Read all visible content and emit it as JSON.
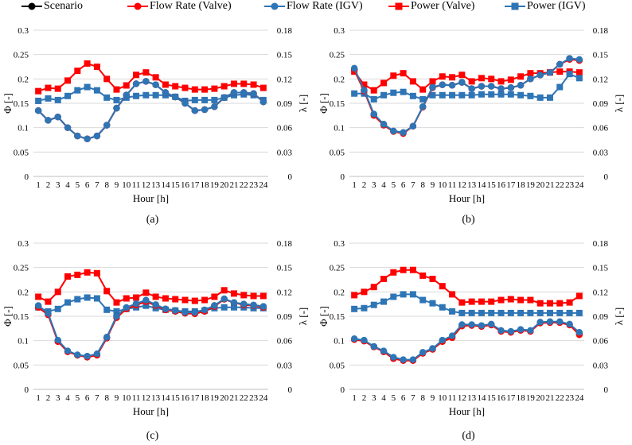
{
  "legend": {
    "items": [
      {
        "label": "Scenario",
        "marker": "circle",
        "color": "#000000"
      },
      {
        "label": "Flow Rate (Valve)",
        "marker": "circle",
        "color": "#ff0000"
      },
      {
        "label": "Flow Rate (IGV)",
        "marker": "circle",
        "color": "#2e75b6"
      },
      {
        "label": "Power (Valve)",
        "marker": "square",
        "color": "#ff0000"
      },
      {
        "label": "Power (IGV)",
        "marker": "square",
        "color": "#2e75b6"
      }
    ]
  },
  "chart_data": [
    {
      "type": "line",
      "caption": "(a)",
      "xlabel": "Hour [h]",
      "ylabel_left": "Φ [-]",
      "ylabel_right": "λ [-]",
      "yticks_left": [
        "0",
        "0.05",
        "0.1",
        "0.15",
        "0.2",
        "0.25",
        "0.3"
      ],
      "yticks_right": [
        "0",
        "0.03",
        "0.06",
        "0.09",
        "0.12",
        "0.15",
        "0.18"
      ],
      "ylim_left": [
        0,
        0.3
      ],
      "ylim_right": [
        0,
        0.18
      ],
      "x": [
        1,
        2,
        3,
        4,
        5,
        6,
        7,
        8,
        9,
        10,
        11,
        12,
        13,
        14,
        15,
        16,
        17,
        18,
        19,
        20,
        21,
        22,
        23,
        24
      ],
      "series": [
        {
          "name": "Scenario",
          "axis": "left",
          "values": [
            0.135,
            0.115,
            0.122,
            0.1,
            0.083,
            0.077,
            0.083,
            0.105,
            0.14,
            0.167,
            0.19,
            0.195,
            0.188,
            0.172,
            0.163,
            0.15,
            0.135,
            0.137,
            0.143,
            0.162,
            0.172,
            0.172,
            0.17,
            0.153
          ]
        },
        {
          "name": "Flow Rate (Valve)",
          "axis": "left",
          "values": [
            0.135,
            0.115,
            0.122,
            0.1,
            0.083,
            0.077,
            0.083,
            0.105,
            0.14,
            0.167,
            0.19,
            0.195,
            0.188,
            0.172,
            0.163,
            0.15,
            0.135,
            0.137,
            0.143,
            0.162,
            0.172,
            0.172,
            0.17,
            0.153
          ]
        },
        {
          "name": "Flow Rate (IGV)",
          "axis": "left",
          "values": [
            0.135,
            0.115,
            0.122,
            0.1,
            0.083,
            0.077,
            0.083,
            0.105,
            0.14,
            0.167,
            0.19,
            0.195,
            0.188,
            0.172,
            0.163,
            0.15,
            0.135,
            0.137,
            0.143,
            0.162,
            0.172,
            0.172,
            0.17,
            0.153
          ]
        },
        {
          "name": "Power (Valve)",
          "axis": "right",
          "values": [
            0.105,
            0.109,
            0.108,
            0.118,
            0.13,
            0.139,
            0.135,
            0.12,
            0.107,
            0.112,
            0.125,
            0.128,
            0.122,
            0.113,
            0.111,
            0.109,
            0.107,
            0.107,
            0.108,
            0.111,
            0.114,
            0.114,
            0.113,
            0.109
          ]
        },
        {
          "name": "Power (IGV)",
          "axis": "right",
          "values": [
            0.093,
            0.096,
            0.094,
            0.099,
            0.106,
            0.11,
            0.106,
            0.097,
            0.094,
            0.097,
            0.099,
            0.1,
            0.1,
            0.1,
            0.098,
            0.093,
            0.094,
            0.094,
            0.094,
            0.097,
            0.1,
            0.101,
            0.1,
            0.094
          ]
        }
      ]
    },
    {
      "type": "line",
      "caption": "(b)",
      "xlabel": "Hour [h]",
      "ylabel_left": "Φ [-]",
      "ylabel_right": "λ [-]",
      "yticks_left": [
        "0",
        "0.05",
        "0.1",
        "0.15",
        "0.2",
        "0.25",
        "0.3"
      ],
      "yticks_right": [
        "0",
        "0.03",
        "0.06",
        "0.09",
        "0.12",
        "0.15",
        "0.18"
      ],
      "ylim_left": [
        0,
        0.3
      ],
      "ylim_right": [
        0,
        0.18
      ],
      "x": [
        1,
        2,
        3,
        4,
        5,
        6,
        7,
        8,
        9,
        10,
        11,
        12,
        13,
        14,
        15,
        16,
        17,
        18,
        19,
        20,
        21,
        22,
        23,
        24
      ],
      "series": [
        {
          "name": "Scenario",
          "axis": "left",
          "values": [
            0.22,
            0.177,
            0.127,
            0.107,
            0.093,
            0.09,
            0.103,
            0.143,
            0.183,
            0.188,
            0.187,
            0.193,
            0.18,
            0.185,
            0.185,
            0.18,
            0.182,
            0.187,
            0.2,
            0.208,
            0.213,
            0.23,
            0.242,
            0.238
          ]
        },
        {
          "name": "Flow Rate (Valve)",
          "axis": "left",
          "values": [
            0.218,
            0.175,
            0.125,
            0.105,
            0.092,
            0.088,
            0.103,
            0.142,
            0.182,
            0.188,
            0.187,
            0.193,
            0.18,
            0.185,
            0.185,
            0.18,
            0.182,
            0.187,
            0.2,
            0.208,
            0.213,
            0.23,
            0.24,
            0.238
          ]
        },
        {
          "name": "Flow Rate (IGV)",
          "axis": "left",
          "values": [
            0.222,
            0.177,
            0.128,
            0.107,
            0.093,
            0.09,
            0.103,
            0.143,
            0.183,
            0.188,
            0.187,
            0.193,
            0.18,
            0.185,
            0.185,
            0.18,
            0.182,
            0.187,
            0.2,
            0.208,
            0.213,
            0.23,
            0.242,
            0.24
          ]
        },
        {
          "name": "Power (Valve)",
          "axis": "right",
          "values": [
            0.129,
            0.113,
            0.106,
            0.115,
            0.124,
            0.127,
            0.117,
            0.107,
            0.117,
            0.123,
            0.122,
            0.125,
            0.117,
            0.121,
            0.12,
            0.117,
            0.119,
            0.123,
            0.127,
            0.127,
            0.128,
            0.129,
            0.129,
            0.128
          ]
        },
        {
          "name": "Power (IGV)",
          "axis": "right",
          "values": [
            0.102,
            0.102,
            0.095,
            0.1,
            0.103,
            0.104,
            0.099,
            0.095,
            0.1,
            0.1,
            0.1,
            0.1,
            0.1,
            0.101,
            0.101,
            0.101,
            0.101,
            0.1,
            0.099,
            0.097,
            0.097,
            0.11,
            0.126,
            0.121
          ]
        }
      ]
    },
    {
      "type": "line",
      "caption": "(c)",
      "xlabel": "Hour [h]",
      "ylabel_left": "Φ [-]",
      "ylabel_right": "λ [-]",
      "yticks_left": [
        "0",
        "0.05",
        "0.1",
        "0.15",
        "0.2",
        "0.25",
        "0.3"
      ],
      "yticks_right": [
        "0",
        "0.03",
        "0.06",
        "0.09",
        "0.12",
        "0.15",
        "0.18"
      ],
      "ylim_left": [
        0,
        0.3
      ],
      "ylim_right": [
        0,
        0.18
      ],
      "x": [
        1,
        2,
        3,
        4,
        5,
        6,
        7,
        8,
        9,
        10,
        11,
        12,
        13,
        14,
        15,
        16,
        17,
        18,
        19,
        20,
        21,
        22,
        23,
        24
      ],
      "series": [
        {
          "name": "Scenario",
          "axis": "left",
          "values": [
            0.17,
            0.155,
            0.1,
            0.078,
            0.07,
            0.068,
            0.072,
            0.107,
            0.15,
            0.167,
            0.175,
            0.182,
            0.173,
            0.165,
            0.162,
            0.158,
            0.158,
            0.163,
            0.172,
            0.185,
            0.178,
            0.175,
            0.173,
            0.17
          ]
        },
        {
          "name": "Flow Rate (Valve)",
          "axis": "left",
          "values": [
            0.168,
            0.153,
            0.098,
            0.077,
            0.07,
            0.066,
            0.07,
            0.105,
            0.147,
            0.165,
            0.173,
            0.18,
            0.172,
            0.163,
            0.16,
            0.156,
            0.155,
            0.16,
            0.17,
            0.185,
            0.178,
            0.173,
            0.172,
            0.168
          ]
        },
        {
          "name": "Flow Rate (IGV)",
          "axis": "left",
          "values": [
            0.172,
            0.156,
            0.101,
            0.079,
            0.071,
            0.068,
            0.073,
            0.107,
            0.15,
            0.168,
            0.176,
            0.183,
            0.174,
            0.165,
            0.162,
            0.158,
            0.158,
            0.163,
            0.172,
            0.186,
            0.178,
            0.175,
            0.173,
            0.17
          ]
        },
        {
          "name": "Power (Valve)",
          "axis": "right",
          "values": [
            0.114,
            0.108,
            0.12,
            0.139,
            0.141,
            0.144,
            0.143,
            0.121,
            0.107,
            0.112,
            0.113,
            0.119,
            0.114,
            0.112,
            0.111,
            0.11,
            0.109,
            0.11,
            0.114,
            0.122,
            0.118,
            0.116,
            0.115,
            0.115
          ]
        },
        {
          "name": "Power (IGV)",
          "axis": "right",
          "values": [
            0.101,
            0.096,
            0.099,
            0.107,
            0.111,
            0.113,
            0.112,
            0.098,
            0.096,
            0.099,
            0.101,
            0.103,
            0.1,
            0.098,
            0.097,
            0.096,
            0.096,
            0.097,
            0.1,
            0.101,
            0.101,
            0.101,
            0.1,
            0.1
          ]
        }
      ]
    },
    {
      "type": "line",
      "caption": "(d)",
      "xlabel": "Hour [h]",
      "ylabel_left": "Φ [-]",
      "ylabel_right": "λ [-]",
      "yticks_left": [
        "0",
        "0.05",
        "0.1",
        "0.15",
        "0.2",
        "0.25",
        "0.3"
      ],
      "yticks_right": [
        "0",
        "0.03",
        "0.06",
        "0.09",
        "0.12",
        "0.15",
        "0.18"
      ],
      "ylim_left": [
        0,
        0.3
      ],
      "ylim_right": [
        0,
        0.18
      ],
      "x": [
        1,
        2,
        3,
        4,
        5,
        6,
        7,
        8,
        9,
        10,
        11,
        12,
        13,
        14,
        15,
        16,
        17,
        18,
        19,
        20,
        21,
        22,
        23,
        24
      ],
      "series": [
        {
          "name": "Scenario",
          "axis": "left",
          "values": [
            0.103,
            0.1,
            0.088,
            0.078,
            0.065,
            0.06,
            0.06,
            0.075,
            0.083,
            0.1,
            0.108,
            0.132,
            0.132,
            0.13,
            0.133,
            0.12,
            0.118,
            0.122,
            0.12,
            0.137,
            0.138,
            0.138,
            0.133,
            0.115
          ]
        },
        {
          "name": "Flow Rate (Valve)",
          "axis": "left",
          "values": [
            0.102,
            0.099,
            0.087,
            0.077,
            0.063,
            0.059,
            0.059,
            0.074,
            0.082,
            0.098,
            0.106,
            0.13,
            0.131,
            0.129,
            0.132,
            0.119,
            0.117,
            0.121,
            0.119,
            0.136,
            0.137,
            0.137,
            0.132,
            0.112
          ]
        },
        {
          "name": "Flow Rate (IGV)",
          "axis": "left",
          "values": [
            0.104,
            0.101,
            0.088,
            0.079,
            0.066,
            0.061,
            0.061,
            0.076,
            0.084,
            0.101,
            0.11,
            0.133,
            0.133,
            0.131,
            0.134,
            0.121,
            0.119,
            0.123,
            0.121,
            0.138,
            0.139,
            0.139,
            0.134,
            0.117
          ]
        },
        {
          "name": "Power (Valve)",
          "axis": "right",
          "values": [
            0.116,
            0.12,
            0.126,
            0.136,
            0.144,
            0.147,
            0.147,
            0.14,
            0.136,
            0.127,
            0.117,
            0.107,
            0.108,
            0.108,
            0.108,
            0.11,
            0.111,
            0.11,
            0.11,
            0.106,
            0.106,
            0.106,
            0.107,
            0.115
          ]
        },
        {
          "name": "Power (IGV)",
          "axis": "right",
          "values": [
            0.099,
            0.1,
            0.104,
            0.108,
            0.114,
            0.117,
            0.117,
            0.11,
            0.106,
            0.101,
            0.096,
            0.094,
            0.094,
            0.094,
            0.094,
            0.094,
            0.094,
            0.094,
            0.094,
            0.094,
            0.094,
            0.094,
            0.094,
            0.094
          ]
        }
      ]
    }
  ]
}
